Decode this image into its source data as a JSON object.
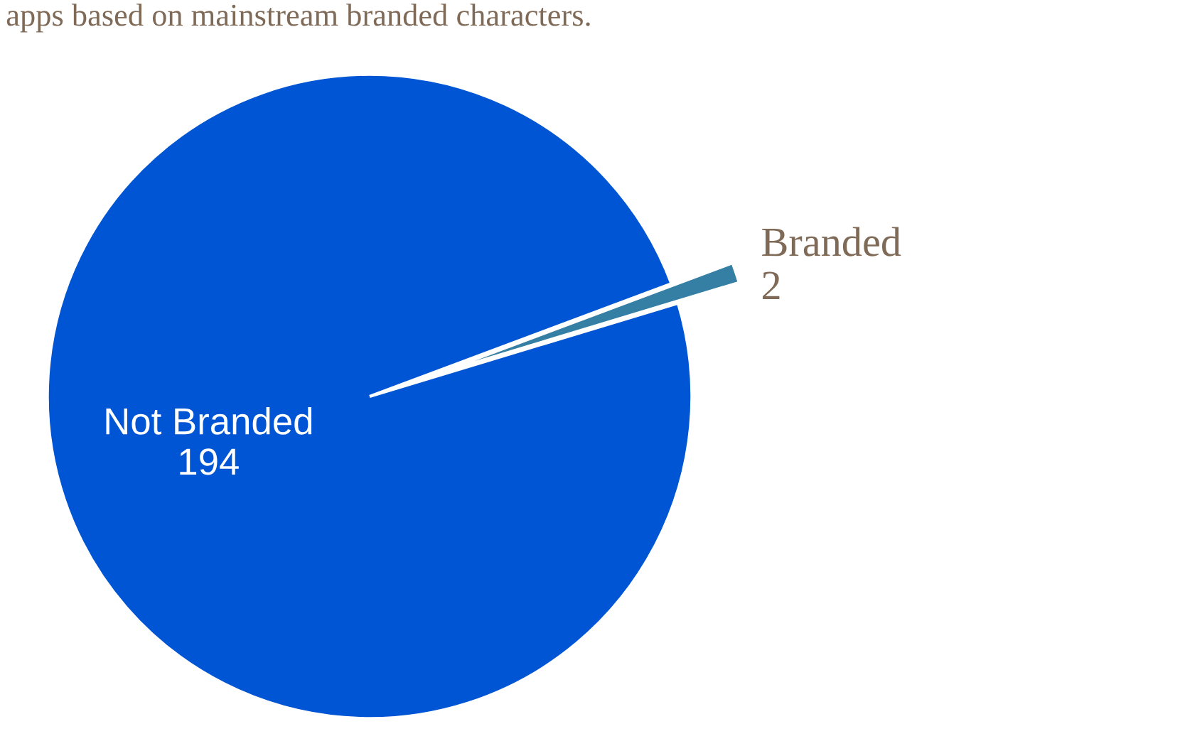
{
  "chart_data": {
    "type": "pie",
    "title": "apps based on mainstream branded characters.",
    "categories": [
      "Not Branded",
      "Branded"
    ],
    "values": [
      194,
      2
    ],
    "colors": [
      "#0055d4",
      "#347fa3"
    ],
    "data_labels": true
  }
}
